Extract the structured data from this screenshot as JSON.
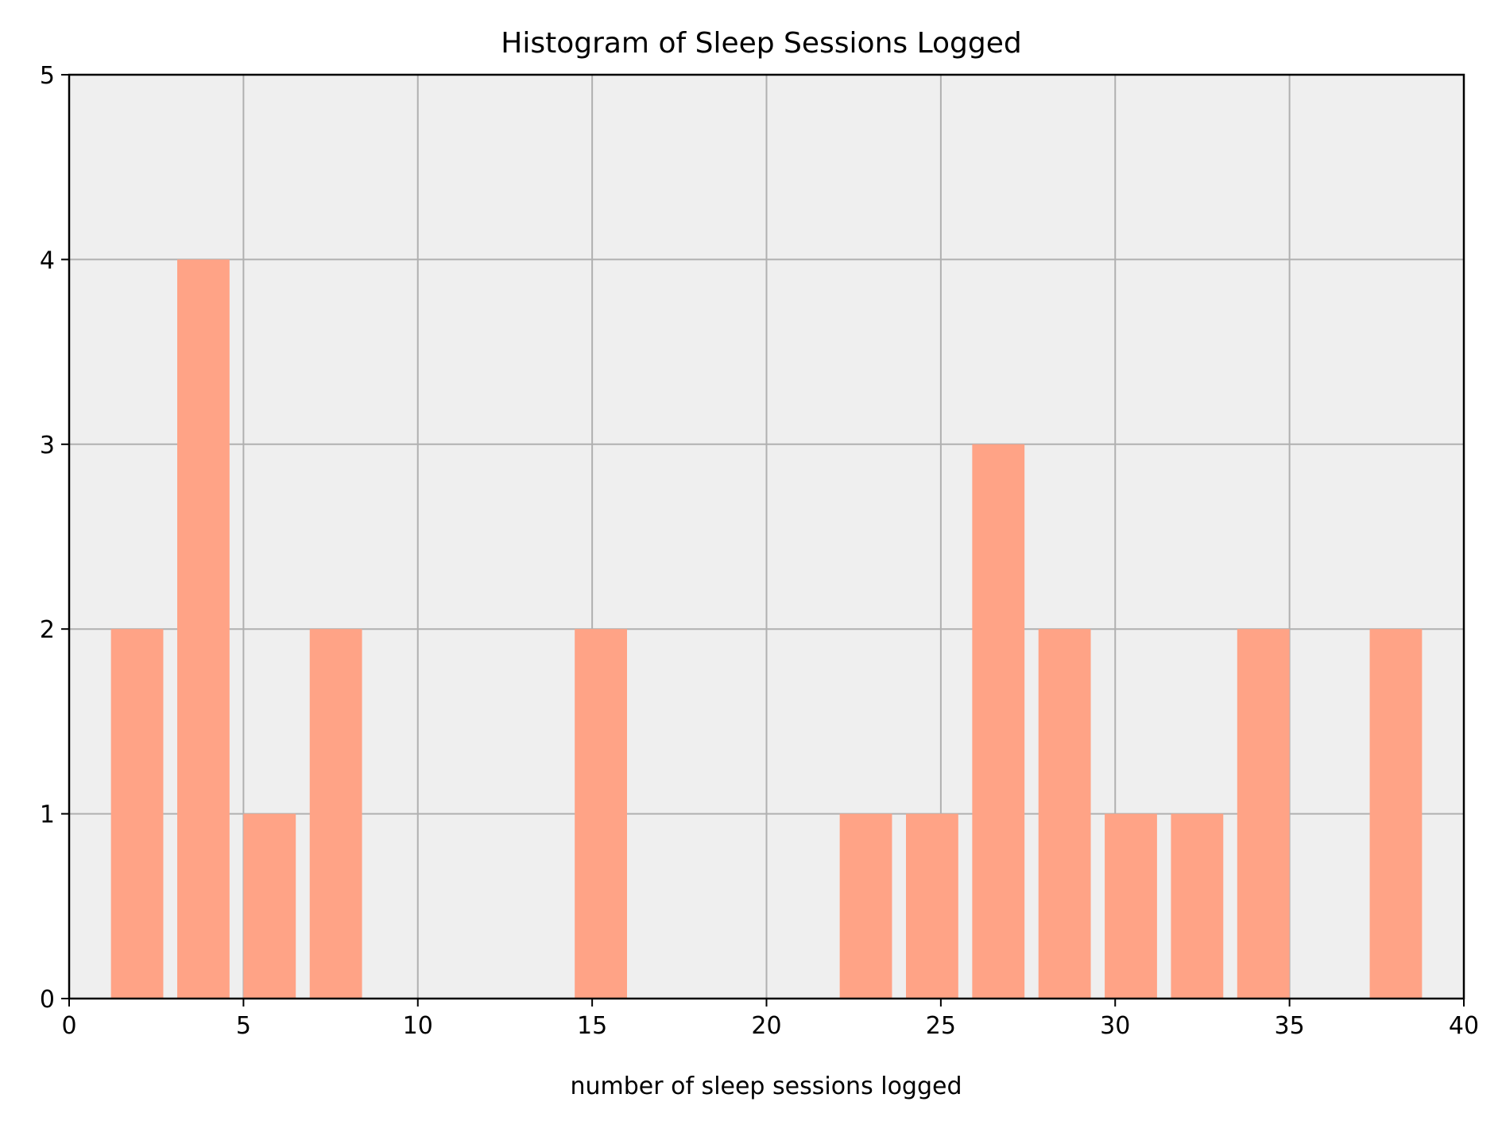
{
  "chart_data": {
    "type": "bar",
    "title": "Histogram of Sleep Sessions Logged",
    "xlabel": "number of sleep sessions logged",
    "ylabel": "",
    "xlim": [
      0,
      40
    ],
    "ylim": [
      0,
      5
    ],
    "xticks": [
      0,
      5,
      10,
      15,
      20,
      25,
      30,
      35,
      40
    ],
    "yticks": [
      0,
      1,
      2,
      3,
      4,
      5
    ],
    "grid": true,
    "bin_width": 1.9,
    "bar_width": 1.5,
    "bins": [
      {
        "center": 1.95,
        "count": 2
      },
      {
        "center": 3.85,
        "count": 4
      },
      {
        "center": 5.75,
        "count": 1
      },
      {
        "center": 7.65,
        "count": 2
      },
      {
        "center": 15.25,
        "count": 2
      },
      {
        "center": 22.85,
        "count": 1
      },
      {
        "center": 24.75,
        "count": 1
      },
      {
        "center": 26.65,
        "count": 3
      },
      {
        "center": 28.55,
        "count": 2
      },
      {
        "center": 30.45,
        "count": 1
      },
      {
        "center": 32.35,
        "count": 1
      },
      {
        "center": 34.25,
        "count": 2
      },
      {
        "center": 38.05,
        "count": 2
      }
    ],
    "colors": {
      "bar": "#FFA386",
      "plot_background": "#EFEFEF",
      "grid": "#B0B0B0",
      "axis": "#000000"
    }
  }
}
